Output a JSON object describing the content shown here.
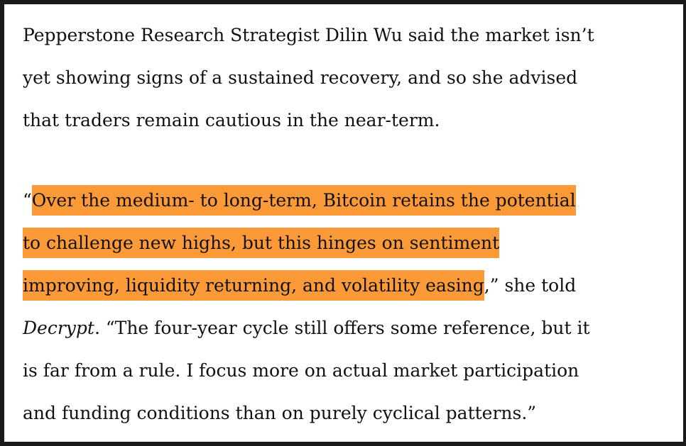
{
  "paragraphs": [
    {
      "lines": [
        "Pepperstone Research Strategist Dilin Wu said the market isn’t",
        "yet showing signs of a sustained recovery, and so she advised",
        "that traders remain cautious in the near-term."
      ]
    },
    {
      "highlight_color": "#fd9a38",
      "line1": {
        "pre": "“",
        "hl": "Over the medium- to long-term, Bitcoin retains the potential"
      },
      "line2": {
        "hl": "to challenge new highs, but this hinges on sentiment"
      },
      "line3": {
        "hl": "improving, liquidity returning, and volatility easing",
        "post": ",” she told"
      },
      "line4": {
        "em": "Decrypt",
        "post": ". “The four-year cycle still offers some reference, but it"
      },
      "line5": "is far from a rule. I focus more on actual market participation",
      "line6": "and funding conditions than on purely cyclical patterns.”"
    }
  ]
}
